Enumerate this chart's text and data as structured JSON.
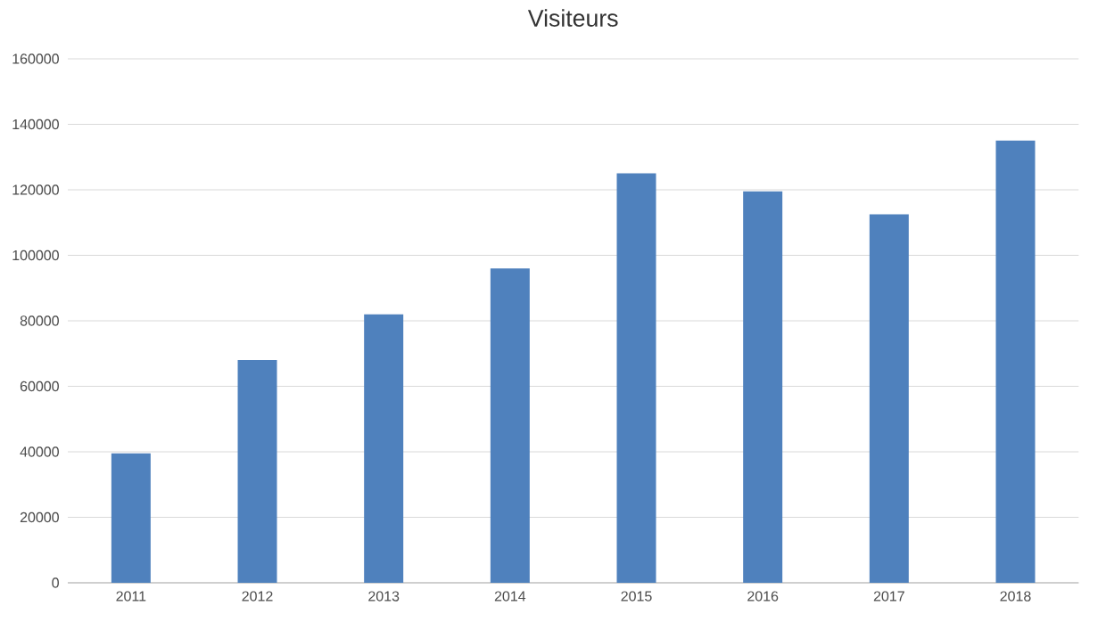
{
  "chart_data": {
    "type": "bar",
    "title": "Visiteurs",
    "categories": [
      "2011",
      "2012",
      "2013",
      "2014",
      "2015",
      "2016",
      "2017",
      "2018"
    ],
    "values": [
      39500,
      68000,
      82000,
      96000,
      125000,
      119500,
      112500,
      135000
    ],
    "color": "#4f81bd",
    "ylim": [
      0,
      160000
    ],
    "yticks": [
      0,
      20000,
      40000,
      60000,
      80000,
      100000,
      120000,
      140000,
      160000
    ],
    "grid": "y"
  }
}
